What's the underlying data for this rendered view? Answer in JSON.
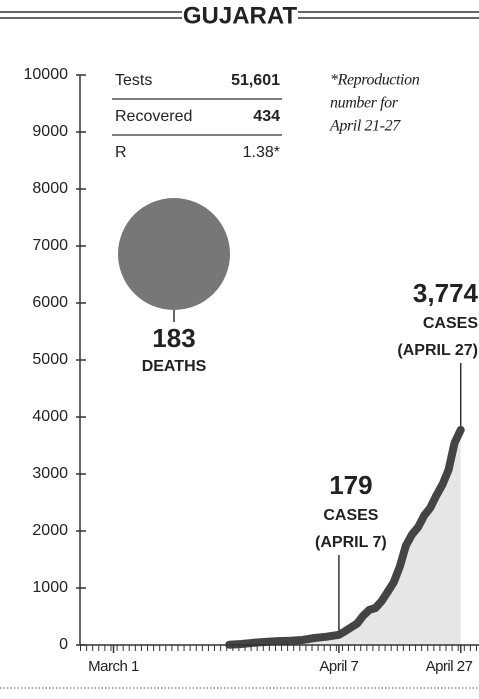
{
  "chart_data": {
    "type": "line",
    "title": "GUJARAT",
    "x": [
      20,
      22,
      24,
      26,
      28,
      30,
      32,
      34,
      36,
      38,
      39,
      40,
      41,
      42,
      43,
      44,
      45,
      46,
      47,
      48,
      49,
      50,
      51,
      52,
      53,
      54,
      55,
      56,
      57,
      58
    ],
    "series": [
      {
        "name": "Cases",
        "color": "#444444",
        "fill": "#e6e6e6",
        "values": [
          5,
          18,
          38,
          55,
          69,
          74,
          87,
          122,
          146,
          179,
          241,
          308,
          378,
          516,
          617,
          650,
          766,
          930,
          1099,
          1376,
          1743,
          1939,
          2066,
          2272,
          2407,
          2624,
          2815,
          3071,
          3548,
          3774
        ]
      }
    ],
    "xlim": [
      -4.5,
      61
    ],
    "xticks": [
      {
        "value": 1,
        "label": "March 1"
      },
      {
        "value": 38,
        "label": "April 7"
      },
      {
        "value": 58,
        "label": "April 27"
      }
    ],
    "ylim": [
      0,
      10000
    ],
    "yticks": [
      0,
      1000,
      2000,
      3000,
      4000,
      5000,
      6000,
      7000,
      8000,
      9000,
      10000
    ],
    "annotations": [
      {
        "x": 38,
        "value": 179,
        "label": "179",
        "text": [
          "CASES",
          "(APRIL 7)"
        ]
      },
      {
        "x": 58,
        "value": 3774,
        "label": "3,774",
        "text": [
          "CASES",
          "(APRIL 27)"
        ]
      }
    ],
    "deaths": {
      "value": 183,
      "label": "DEATHS",
      "color": "#777777"
    },
    "stats": [
      {
        "label": "Tests",
        "value": "51,601"
      },
      {
        "label": "Recovered",
        "value": "434"
      },
      {
        "label": "R",
        "value": "1.38*"
      }
    ],
    "note": [
      "*Reproduction",
      "number for",
      "April 21-27"
    ]
  }
}
